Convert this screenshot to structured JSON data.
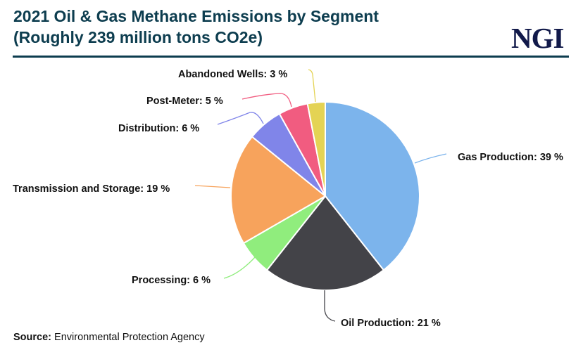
{
  "header": {
    "title_line1": "2021 Oil & Gas Methane Emissions by Segment",
    "title_line2": "(Roughly 239 million tons CO2e)",
    "logo": "NGI",
    "title_color": "#0d3d4f",
    "logo_color": "#121a4a"
  },
  "footer": {
    "source_label": "Source:",
    "source_value": "Environmental Protection Agency"
  },
  "chart_data": {
    "type": "pie",
    "title": "2021 Oil & Gas Methane Emissions by Segment",
    "subtitle": "(Roughly 239 million tons CO2e)",
    "unit": "%",
    "start_angle": "12 o'clock, clockwise",
    "categories": [
      "Gas Production",
      "Oil Production",
      "Processing",
      "Transmission and Storage",
      "Distribution",
      "Post-Meter",
      "Abandoned Wells"
    ],
    "values": [
      39,
      21,
      6,
      19,
      6,
      5,
      3
    ],
    "colors": [
      "#7cb4ec",
      "#434348",
      "#90ed7d",
      "#f7a35c",
      "#8085e9",
      "#f15c80",
      "#e4d354"
    ],
    "labels": [
      "Gas Production: 39 %",
      "Oil Production: 21 %",
      "Processing: 6 %",
      "Transmission and Storage: 19 %",
      "Distribution: 6 %",
      "Post-Meter: 5 %",
      "Abandoned Wells: 3 %"
    ],
    "source": "Environmental Protection Agency",
    "legend": "none (data labels with leader lines)"
  }
}
